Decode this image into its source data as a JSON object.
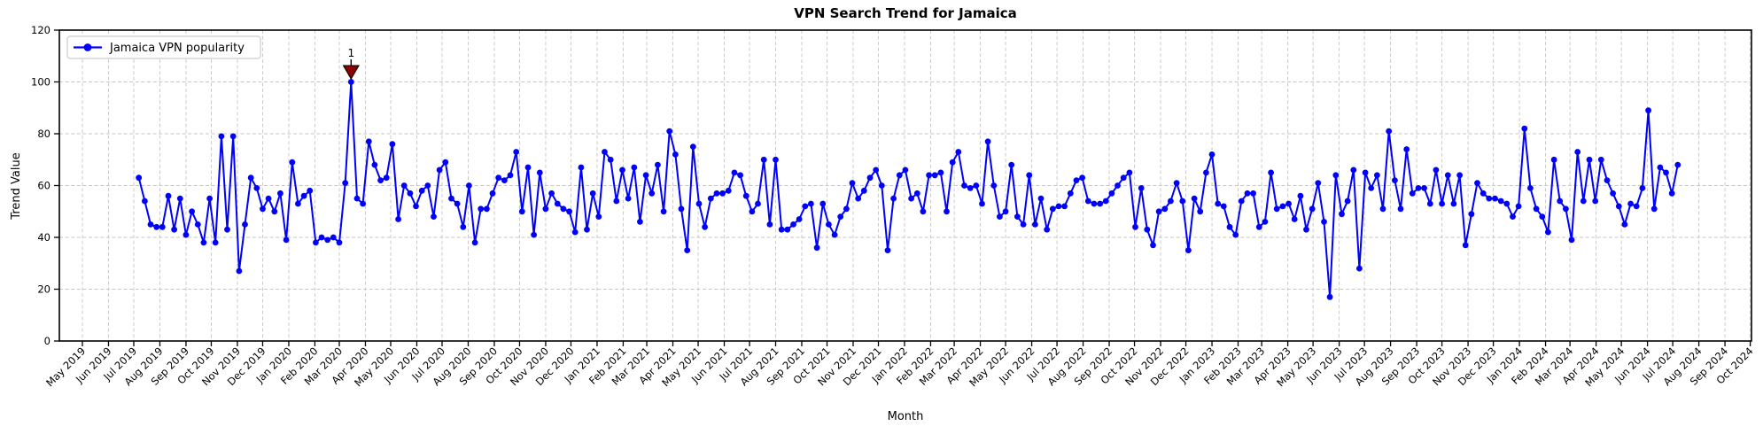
{
  "title": "VPN Search Trend for Jamaica",
  "axes": {
    "xlabel": "Month",
    "ylabel": "Trend Value",
    "yticks": [
      0,
      20,
      40,
      60,
      80,
      100,
      120
    ],
    "xticklabels": [
      "May 2019",
      "Jun 2019",
      "Jul 2019",
      "Aug 2019",
      "Sep 2019",
      "Oct 2019",
      "Nov 2019",
      "Dec 2019",
      "Jan 2020",
      "Feb 2020",
      "Mar 2020",
      "Apr 2020",
      "May 2020",
      "Jun 2020",
      "Jul 2020",
      "Aug 2020",
      "Sep 2020",
      "Oct 2020",
      "Nov 2020",
      "Dec 2020",
      "Jan 2021",
      "Feb 2021",
      "Mar 2021",
      "Apr 2021",
      "May 2021",
      "Jun 2021",
      "Jul 2021",
      "Aug 2021",
      "Sep 2021",
      "Oct 2021",
      "Nov 2021",
      "Dec 2021",
      "Jan 2022",
      "Feb 2022",
      "Mar 2022",
      "Apr 2022",
      "May 2022",
      "Jun 2022",
      "Jul 2022",
      "Aug 2022",
      "Sep 2022",
      "Oct 2022",
      "Nov 2022",
      "Dec 2022",
      "Jan 2023",
      "Feb 2023",
      "Mar 2023",
      "Apr 2023",
      "May 2023",
      "Jun 2023",
      "Jul 2023",
      "Aug 2023",
      "Sep 2023",
      "Oct 2023",
      "Nov 2023",
      "Dec 2023",
      "Jan 2024",
      "Feb 2024",
      "Mar 2024",
      "Apr 2024",
      "May 2024",
      "Jun 2024",
      "Jul 2024",
      "Aug 2024",
      "Sep 2024",
      "Oct 2024"
    ]
  },
  "legend": {
    "label": "Jamaica VPN popularity"
  },
  "annotation": {
    "text": "1",
    "color": "#8b0000",
    "marks_value": 100,
    "marks_month": "Mar 2020"
  },
  "chart_data": {
    "type": "line",
    "title": "VPN Search Trend for Jamaica",
    "xlabel": "Month",
    "ylabel": "Trend Value",
    "ylim": [
      0,
      120
    ],
    "grid": true,
    "legend_position": "upper left",
    "line_color": "#0000ff",
    "marker": "circle",
    "x_start_week": "2019-07-07",
    "x_interval_days": 7,
    "series": [
      {
        "name": "Jamaica VPN popularity",
        "values": [
          63,
          54,
          45,
          44,
          44,
          56,
          43,
          55,
          41,
          50,
          45,
          38,
          55,
          38,
          79,
          43,
          79,
          27,
          45,
          63,
          59,
          51,
          55,
          50,
          57,
          39,
          69,
          53,
          56,
          58,
          38,
          40,
          39,
          40,
          38,
          61,
          100,
          55,
          53,
          77,
          68,
          62,
          63,
          76,
          47,
          60,
          57,
          52,
          58,
          60,
          48,
          66,
          69,
          55,
          53,
          44,
          60,
          38,
          51,
          51,
          57,
          63,
          62,
          64,
          73,
          50,
          67,
          41,
          65,
          51,
          57,
          53,
          51,
          50,
          42,
          67,
          43,
          57,
          48,
          73,
          70,
          54,
          66,
          55,
          67,
          46,
          64,
          57,
          68,
          50,
          81,
          72,
          51,
          35,
          75,
          53,
          44,
          55,
          57,
          57,
          58,
          65,
          64,
          56,
          50,
          53,
          70,
          45,
          70,
          43,
          43,
          45,
          47,
          52,
          53,
          36,
          53,
          45,
          41,
          48,
          51,
          61,
          55,
          58,
          63,
          66,
          60,
          35,
          55,
          64,
          66,
          55,
          57,
          50,
          64,
          64,
          65,
          50,
          69,
          73,
          60,
          59,
          60,
          53,
          77,
          60,
          48,
          50,
          68,
          48,
          45,
          64,
          45,
          55,
          43,
          51,
          52,
          52,
          57,
          62,
          63,
          54,
          53,
          53,
          54,
          57,
          60,
          63,
          65,
          44,
          59,
          43,
          37,
          50,
          51,
          54,
          61,
          54,
          35,
          55,
          50,
          65,
          72,
          53,
          52,
          44,
          41,
          54,
          57,
          57,
          44,
          46,
          65,
          51,
          52,
          53,
          47,
          56,
          43,
          51,
          61,
          46,
          17,
          64,
          49,
          54,
          66,
          28,
          65,
          59,
          64,
          51,
          81,
          62,
          51,
          74,
          57,
          59,
          59,
          53,
          66,
          53,
          64,
          53,
          64,
          37,
          49,
          61,
          57,
          55,
          55,
          54,
          53,
          48,
          52,
          82,
          59,
          51,
          48,
          42,
          70,
          54,
          51,
          39,
          73,
          54,
          70,
          54,
          70,
          62,
          57,
          52,
          45,
          53,
          52,
          59,
          89,
          51,
          67,
          65,
          57,
          68
        ]
      }
    ],
    "annotated_peak": {
      "label": "1",
      "value": 100
    }
  }
}
